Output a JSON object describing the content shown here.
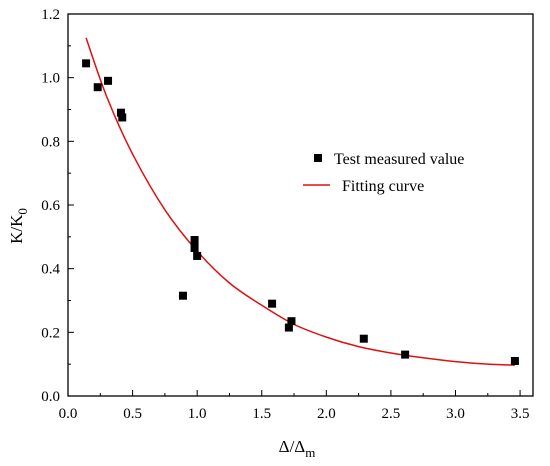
{
  "chart_data": {
    "type": "scatter",
    "xlabel": "Δ/Δ",
    "xlabel_sub": "m",
    "ylabel": "K/K",
    "ylabel_sub": "0",
    "xlim": [
      0.0,
      3.6
    ],
    "ylim": [
      0.0,
      1.2
    ],
    "xticks": [
      "0.0",
      "0.5",
      "1.0",
      "1.5",
      "2.0",
      "2.5",
      "3.0",
      "3.5"
    ],
    "yticks": [
      "0.0",
      "0.2",
      "0.4",
      "0.6",
      "0.8",
      "1.0",
      "1.2"
    ],
    "grid": false,
    "legend_position": "right-center",
    "series": [
      {
        "name": "Test measured value",
        "kind": "scatter",
        "marker": "square",
        "color": "#000000",
        "x": [
          0.14,
          0.23,
          0.31,
          0.41,
          0.42,
          0.89,
          0.98,
          0.98,
          1.0,
          1.58,
          1.71,
          1.73,
          2.29,
          2.61,
          3.46
        ],
        "y": [
          1.045,
          0.97,
          0.99,
          0.89,
          0.875,
          0.315,
          0.49,
          0.465,
          0.44,
          0.29,
          0.215,
          0.235,
          0.18,
          0.13,
          0.11
        ]
      },
      {
        "name": "Fitting curve",
        "kind": "line",
        "color": "#e01010",
        "x": [
          0.14,
          0.3,
          0.5,
          0.75,
          1.0,
          1.25,
          1.5,
          1.75,
          2.0,
          2.25,
          2.5,
          2.75,
          3.0,
          3.25,
          3.46
        ],
        "y": [
          1.125,
          0.94,
          0.76,
          0.585,
          0.455,
          0.355,
          0.285,
          0.225,
          0.185,
          0.155,
          0.135,
          0.12,
          0.108,
          0.1,
          0.097
        ]
      }
    ]
  }
}
